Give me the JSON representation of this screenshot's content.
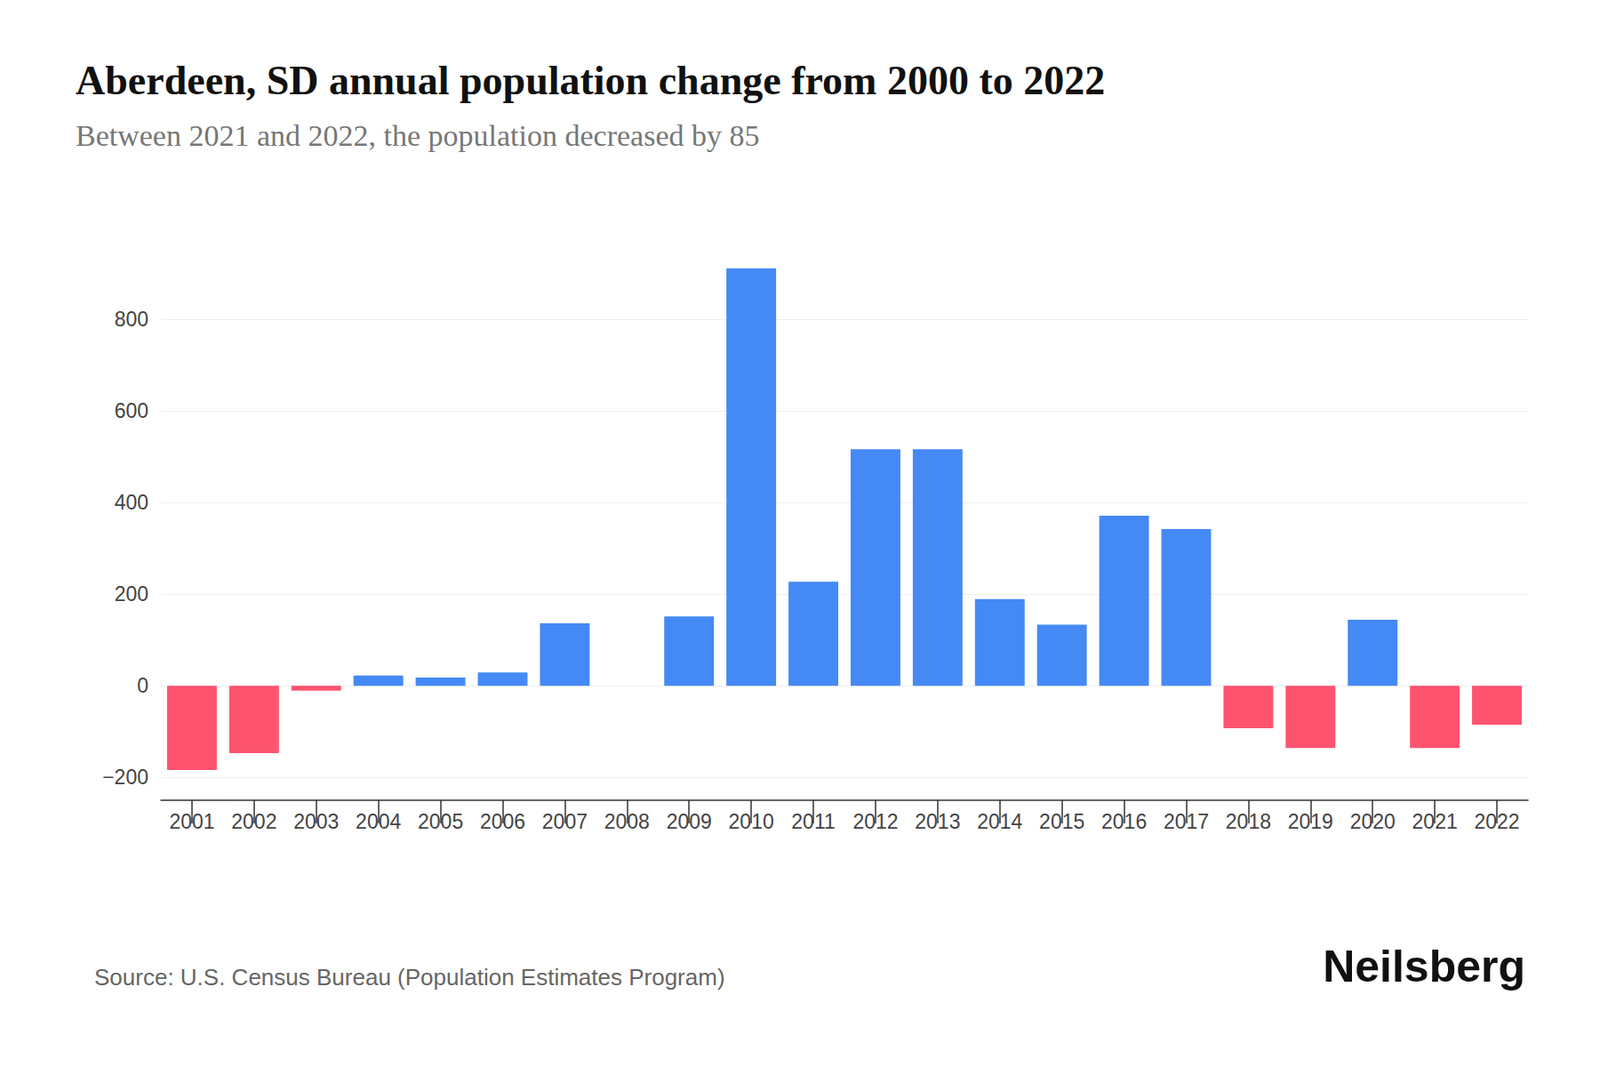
{
  "chart_data": {
    "type": "bar",
    "title": "Aberdeen, SD annual population change from 2000 to 2022",
    "subtitle": "Between 2021 and 2022, the population decreased by 85",
    "source": "Source: U.S. Census Bureau (Population Estimates Program)",
    "brand": "Neilsberg",
    "categories": [
      "2001",
      "2002",
      "2003",
      "2004",
      "2005",
      "2006",
      "2007",
      "2008",
      "2009",
      "2010",
      "2011",
      "2012",
      "2013",
      "2014",
      "2015",
      "2016",
      "2017",
      "2018",
      "2019",
      "2020",
      "2021",
      "2022"
    ],
    "values": [
      -184,
      -147,
      -11,
      22,
      18,
      29,
      136,
      0,
      151,
      911,
      227,
      516,
      516,
      189,
      133,
      371,
      342,
      -93,
      -136,
      144,
      -136,
      -85
    ],
    "colors": [
      "#ff5470",
      "#ff5470",
      "#ff5470",
      "#4589f5",
      "#4589f5",
      "#4589f5",
      "#4589f5",
      "#4589f5",
      "#4589f5",
      "#4589f5",
      "#4589f5",
      "#4589f5",
      "#4589f5",
      "#4589f5",
      "#4589f5",
      "#4589f5",
      "#4589f5",
      "#ff5470",
      "#ff5470",
      "#4589f5",
      "#ff5470",
      "#ff5470"
    ],
    "ylim": [
      -250,
      920
    ],
    "yticks": [
      {
        "value": -200,
        "label": "−200"
      },
      0,
      200,
      400,
      600,
      800
    ],
    "grid": true
  }
}
